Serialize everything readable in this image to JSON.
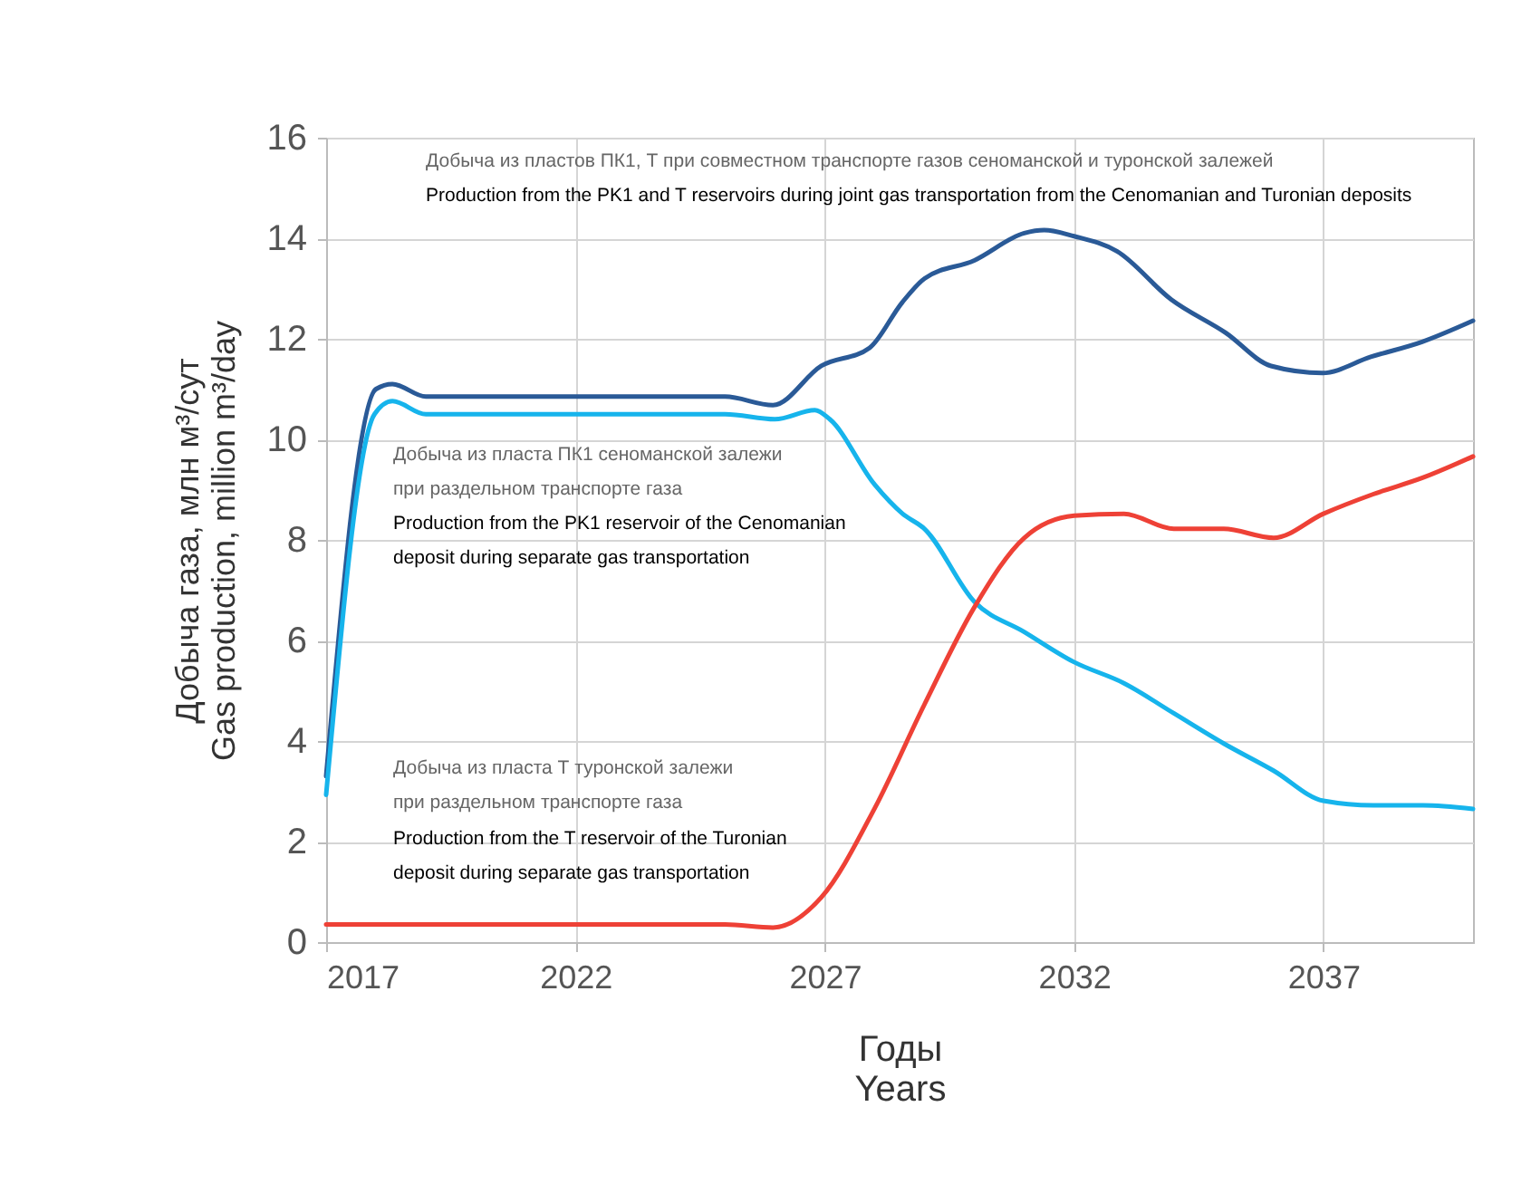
{
  "chart_data": {
    "type": "line",
    "xlabel": "Годы\nYears",
    "ylabel": "Добыча газа, млн м³/сут\nGas production, million m³/day",
    "xlim": [
      2017,
      2040
    ],
    "xticks": [
      2017,
      2022,
      2027,
      2032,
      2037
    ],
    "ylim": [
      0,
      16
    ],
    "yticks": [
      0,
      2,
      4,
      6,
      8,
      10,
      12,
      14,
      16
    ],
    "grid": true,
    "legend": false,
    "series": [
      {
        "color": "#2a5a97",
        "x": [
          2017,
          2018,
          2018.33,
          2019,
          2020,
          2021,
          2022,
          2023,
          2024,
          2025,
          2025.96,
          2026.93,
          2027.9,
          2028.55,
          2029,
          2030,
          2031,
          2031.4,
          2032,
          2032.86,
          2033.95,
          2035.04,
          2035.95,
          2036.98,
          2037.95,
          2038.98,
          2040
        ],
        "values": [
          3.3,
          11.0,
          11.1,
          10.85,
          10.85,
          10.85,
          10.85,
          10.85,
          10.85,
          10.85,
          10.68,
          11.46,
          11.82,
          12.72,
          13.2,
          13.56,
          14.1,
          14.16,
          14.04,
          13.74,
          12.78,
          12.12,
          11.46,
          11.32,
          11.64,
          11.94,
          12.36
        ]
      },
      {
        "color": "#16b4ec",
        "x": [
          2017,
          2017.97,
          2018.33,
          2019,
          2020,
          2021,
          2022,
          2023,
          2024,
          2025,
          2026,
          2026.8,
          2027.1,
          2028,
          2028.56,
          2029,
          2030,
          2031,
          2032,
          2033,
          2034,
          2035,
          2036,
          2037,
          2038,
          2039,
          2040
        ],
        "values": [
          2.93,
          10.5,
          10.76,
          10.5,
          10.5,
          10.5,
          10.5,
          10.5,
          10.5,
          10.5,
          10.4,
          10.58,
          10.4,
          9.1,
          8.52,
          8.22,
          6.77,
          6.17,
          5.57,
          5.15,
          4.55,
          3.95,
          3.41,
          2.81,
          2.72,
          2.72,
          2.65
        ]
      },
      {
        "color": "#ee4136",
        "x": [
          2017,
          2018,
          2019,
          2020,
          2021,
          2022,
          2023,
          2024,
          2025,
          2025.96,
          2026.93,
          2028,
          2029,
          2030,
          2031,
          2032,
          2033,
          2034,
          2035,
          2036,
          2037,
          2038,
          2039,
          2040
        ],
        "values": [
          0.35,
          0.35,
          0.35,
          0.35,
          0.35,
          0.35,
          0.35,
          0.35,
          0.35,
          0.29,
          0.89,
          2.66,
          4.73,
          6.66,
          8.04,
          8.48,
          8.52,
          8.22,
          8.22,
          8.04,
          8.52,
          8.91,
          9.24,
          9.66
        ]
      }
    ],
    "annotations": [
      "Добыча из пластов ПК1, Т при совместном транспорте газов сеноманской и туронской залежей",
      "Production from the PK1 and T reservoirs during joint gas transportation from the Cenomanian and Turonian deposits",
      "Добыча из пласта ПК1 сеноманской залежи\nпри раздельном транспорте газа",
      "Production from the PK1 reservoir of the Cenomanian\ndeposit during separate gas transportation",
      "Добыча из пласта Т туронской залежи\nпри раздельном транспорте газа",
      "Production from the T reservoir of the Turonian\ndeposit during separate gas transportation"
    ]
  }
}
